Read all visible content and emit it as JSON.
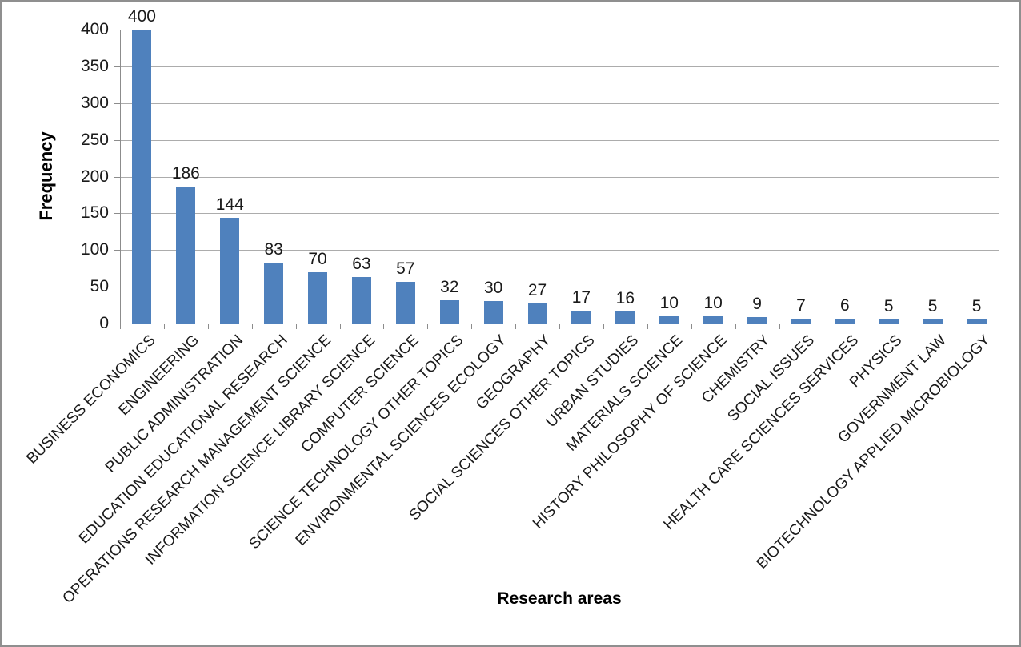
{
  "chart_data": {
    "type": "bar",
    "title": "",
    "xlabel": "Research areas",
    "ylabel": "Frequency",
    "categories": [
      "BUSINESS ECONOMICS",
      "ENGINEERING",
      "PUBLIC ADMINISTRATION",
      "EDUCATION EDUCATIONAL RESEARCH",
      "OPERATIONS RESEARCH MANAGEMENT SCIENCE",
      "INFORMATION SCIENCE LIBRARY SCIENCE",
      "COMPUTER SCIENCE",
      "SCIENCE TECHNOLOGY OTHER TOPICS",
      "ENVIRONMENTAL SCIENCES ECOLOGY",
      "GEOGRAPHY",
      "SOCIAL SCIENCES OTHER TOPICS",
      "URBAN STUDIES",
      "MATERIALS SCIENCE",
      "HISTORY PHILOSOPHY OF SCIENCE",
      "CHEMISTRY",
      "SOCIAL ISSUES",
      "HEALTH CARE SCIENCES SERVICES",
      "PHYSICS",
      "GOVERNMENT LAW",
      "BIOTECHNOLOGY APPLIED MICROBIOLOGY"
    ],
    "values": [
      400,
      186,
      144,
      83,
      70,
      63,
      57,
      32,
      30,
      27,
      17,
      16,
      10,
      10,
      9,
      7,
      6,
      5,
      5,
      5
    ],
    "data_labels": [
      400,
      186,
      144,
      83,
      70,
      63,
      57,
      32,
      30,
      27,
      17,
      16,
      10,
      10,
      9,
      7,
      6,
      5,
      5,
      5
    ],
    "ylim": [
      0,
      400
    ],
    "yticks": [
      0,
      50,
      100,
      150,
      200,
      250,
      300,
      350,
      400
    ],
    "grid": "horizontal",
    "legend": "none",
    "bar_color": "#4F81BD"
  },
  "colors": {
    "bar": "#4F81BD",
    "gridline": "#acacac",
    "axis": "#8c8c8c",
    "frame_border": "#8f8f8f",
    "text": "#1a1a1a"
  }
}
